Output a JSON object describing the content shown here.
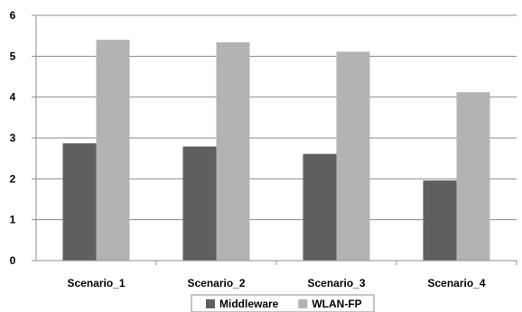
{
  "chart_data": {
    "type": "bar",
    "categories": [
      "Scenario_1",
      "Scenario_2",
      "Scenario_3",
      "Scenario_4"
    ],
    "series": [
      {
        "name": "Middleware",
        "values": [
          2.87,
          2.79,
          2.61,
          1.96
        ],
        "color": "#5f5f5f"
      },
      {
        "name": "WLAN-FP",
        "values": [
          5.4,
          5.34,
          5.11,
          4.12
        ],
        "color": "#b3b3b3"
      }
    ],
    "ylim": [
      0,
      6
    ],
    "yticks": [
      "0",
      "1",
      "2",
      "3",
      "4",
      "5",
      "6"
    ],
    "grid": true,
    "legend_position": "bottom"
  }
}
